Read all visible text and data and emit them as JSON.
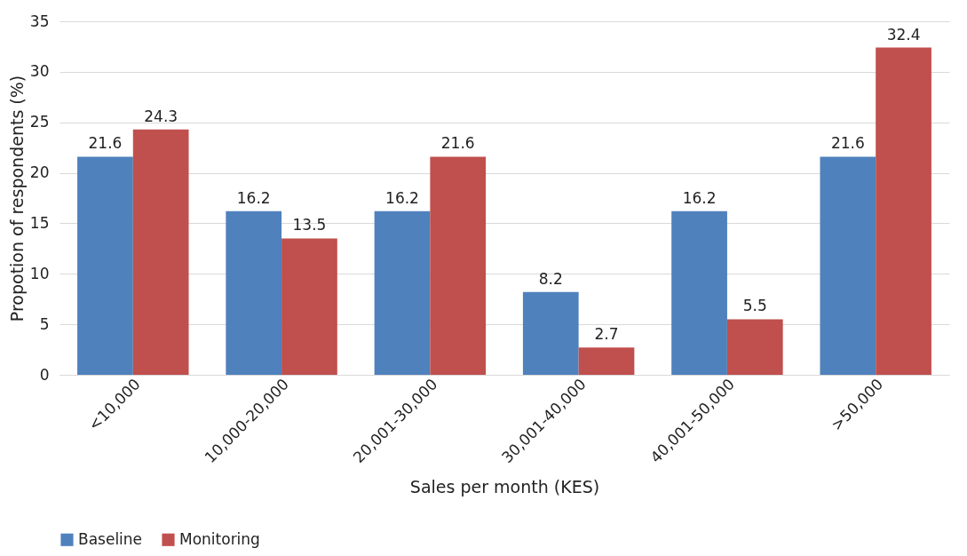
{
  "chart_data": {
    "type": "bar",
    "xlabel": "Sales per month (KES)",
    "ylabel": "Propotion of respondents (%)",
    "categories": [
      "<10,000",
      "10,000-20,000",
      "20,001-30,000",
      "30,001-40,000",
      "40,001-50,000",
      ">50,000"
    ],
    "series": [
      {
        "name": "Baseline",
        "color": "#4f81bd",
        "values": [
          21.6,
          16.2,
          16.2,
          8.2,
          16.2,
          21.6
        ]
      },
      {
        "name": "Monitoring",
        "color": "#c0504d",
        "values": [
          24.3,
          13.5,
          21.6,
          2.7,
          5.5,
          32.4
        ]
      }
    ],
    "ylim": [
      0,
      35
    ],
    "yticks": [
      0,
      5,
      10,
      15,
      20,
      25,
      30,
      35
    ],
    "grid": "y",
    "legend": "bottom",
    "data_labels": true
  }
}
